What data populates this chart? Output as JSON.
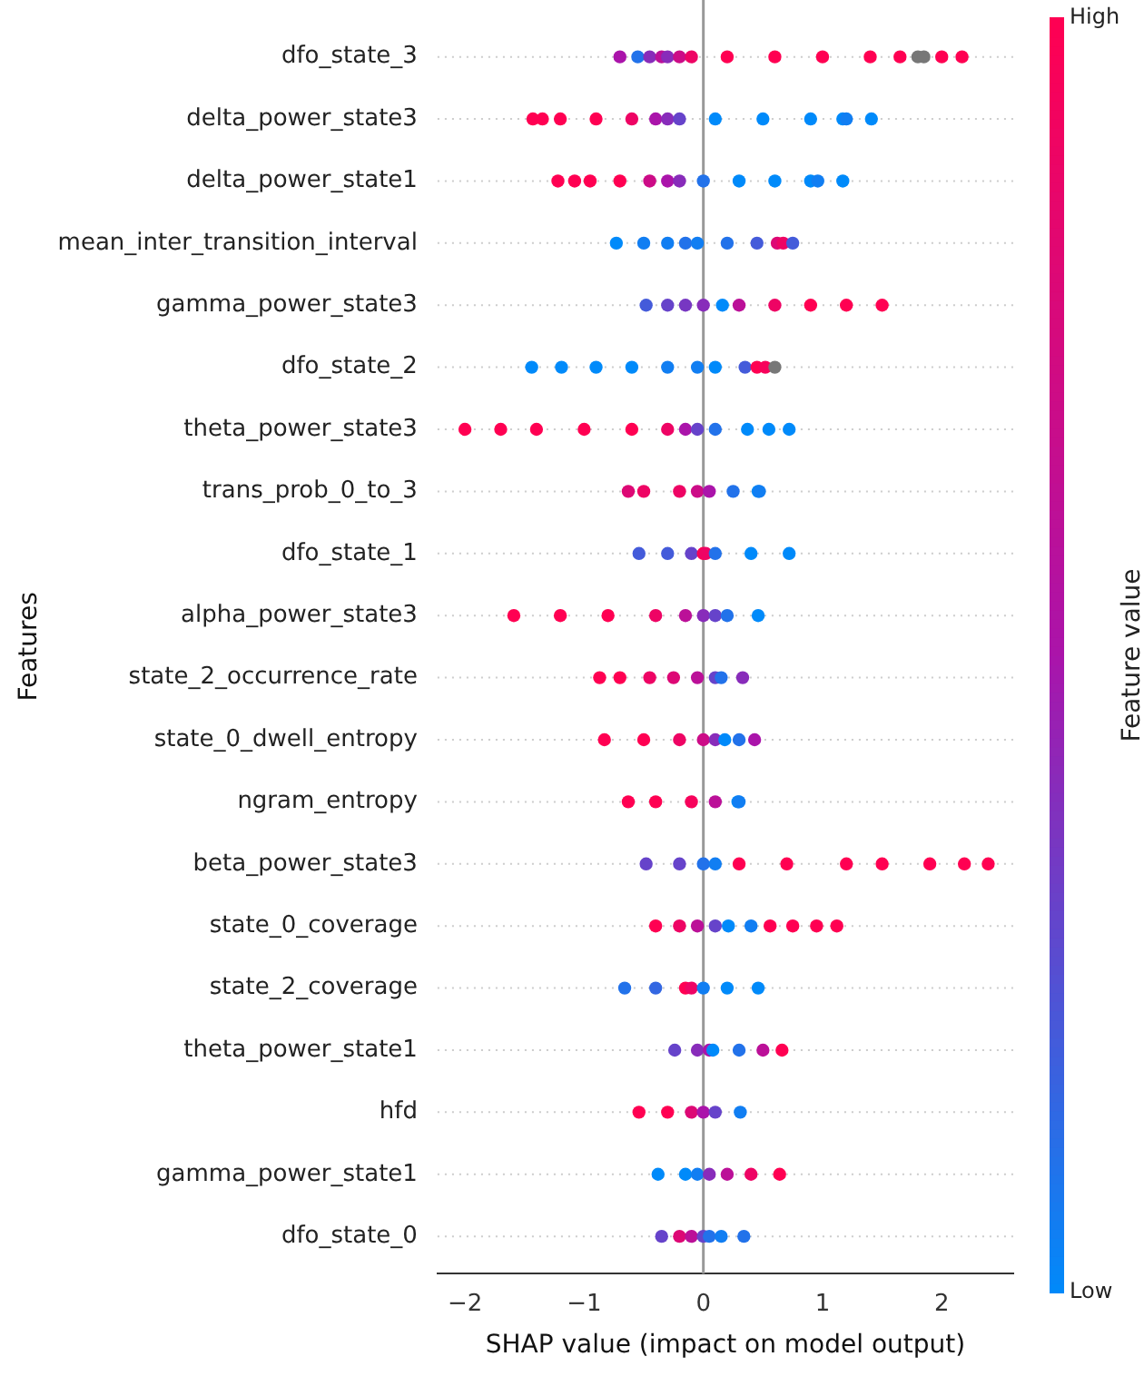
{
  "chart_data": {
    "type": "scatter",
    "orientation": "horizontal",
    "xlabel": "SHAP value (impact on model output)",
    "ylabel": "Features",
    "clabel": "Feature value",
    "categories": [
      "dfo_state_3",
      "delta_power_state3",
      "delta_power_state1",
      "mean_inter_transition_interval",
      "gamma_power_state3",
      "dfo_state_2",
      "theta_power_state3",
      "trans_prob_0_to_3",
      "dfo_state_1",
      "alpha_power_state3",
      "state_2_occurrence_rate",
      "state_0_dwell_entropy",
      "ngram_entropy",
      "beta_power_state3",
      "state_0_coverage",
      "state_2_coverage",
      "theta_power_state1",
      "hfd",
      "gamma_power_state1",
      "dfo_state_0"
    ],
    "series": [
      {
        "x": [
          "dfo_state_3",
          "dfo_state_3",
          "dfo_state_3",
          "dfo_state_3",
          "dfo_state_3",
          "dfo_state_3",
          "dfo_state_3",
          "dfo_state_3",
          "dfo_state_3",
          "dfo_state_3",
          "dfo_state_3",
          "dfo_state_3",
          "dfo_state_3",
          "dfo_state_3",
          "dfo_state_3",
          "dfo_state_3",
          "delta_power_state3",
          "delta_power_state3",
          "delta_power_state3",
          "delta_power_state3",
          "delta_power_state3",
          "delta_power_state3",
          "delta_power_state3",
          "delta_power_state3",
          "delta_power_state3",
          "delta_power_state3",
          "delta_power_state3",
          "delta_power_state3",
          "delta_power_state3",
          "delta_power_state3",
          "delta_power_state1",
          "delta_power_state1",
          "delta_power_state1",
          "delta_power_state1",
          "delta_power_state1",
          "delta_power_state1",
          "delta_power_state1",
          "delta_power_state1",
          "delta_power_state1",
          "delta_power_state1",
          "delta_power_state1",
          "delta_power_state1",
          "delta_power_state1",
          "mean_inter_transition_interval",
          "mean_inter_transition_interval",
          "mean_inter_transition_interval",
          "mean_inter_transition_interval",
          "mean_inter_transition_interval",
          "mean_inter_transition_interval",
          "mean_inter_transition_interval",
          "mean_inter_transition_interval",
          "mean_inter_transition_interval",
          "mean_inter_transition_interval",
          "gamma_power_state3",
          "gamma_power_state3",
          "gamma_power_state3",
          "gamma_power_state3",
          "gamma_power_state3",
          "gamma_power_state3",
          "gamma_power_state3",
          "gamma_power_state3",
          "gamma_power_state3",
          "gamma_power_state3",
          "dfo_state_2",
          "dfo_state_2",
          "dfo_state_2",
          "dfo_state_2",
          "dfo_state_2",
          "dfo_state_2",
          "dfo_state_2",
          "dfo_state_2",
          "dfo_state_2",
          "dfo_state_2",
          "dfo_state_2",
          "theta_power_state3",
          "theta_power_state3",
          "theta_power_state3",
          "theta_power_state3",
          "theta_power_state3",
          "theta_power_state3",
          "theta_power_state3",
          "theta_power_state3",
          "theta_power_state3",
          "theta_power_state3",
          "theta_power_state3",
          "theta_power_state3",
          "trans_prob_0_to_3",
          "trans_prob_0_to_3",
          "trans_prob_0_to_3",
          "trans_prob_0_to_3",
          "trans_prob_0_to_3",
          "trans_prob_0_to_3",
          "trans_prob_0_to_3",
          "trans_prob_0_to_3",
          "dfo_state_1",
          "dfo_state_1",
          "dfo_state_1",
          "dfo_state_1",
          "dfo_state_1",
          "dfo_state_1",
          "dfo_state_1",
          "dfo_state_1",
          "alpha_power_state3",
          "alpha_power_state3",
          "alpha_power_state3",
          "alpha_power_state3",
          "alpha_power_state3",
          "alpha_power_state3",
          "alpha_power_state3",
          "alpha_power_state3",
          "alpha_power_state3",
          "state_2_occurrence_rate",
          "state_2_occurrence_rate",
          "state_2_occurrence_rate",
          "state_2_occurrence_rate",
          "state_2_occurrence_rate",
          "state_2_occurrence_rate",
          "state_2_occurrence_rate",
          "state_2_occurrence_rate",
          "state_0_dwell_entropy",
          "state_0_dwell_entropy",
          "state_0_dwell_entropy",
          "state_0_dwell_entropy",
          "state_0_dwell_entropy",
          "state_0_dwell_entropy",
          "state_0_dwell_entropy",
          "state_0_dwell_entropy",
          "ngram_entropy",
          "ngram_entropy",
          "ngram_entropy",
          "ngram_entropy",
          "ngram_entropy",
          "ngram_entropy",
          "beta_power_state3",
          "beta_power_state3",
          "beta_power_state3",
          "beta_power_state3",
          "beta_power_state3",
          "beta_power_state3",
          "beta_power_state3",
          "beta_power_state3",
          "beta_power_state3",
          "beta_power_state3",
          "beta_power_state3",
          "state_0_coverage",
          "state_0_coverage",
          "state_0_coverage",
          "state_0_coverage",
          "state_0_coverage",
          "state_0_coverage",
          "state_0_coverage",
          "state_0_coverage",
          "state_0_coverage",
          "state_0_coverage",
          "state_2_coverage",
          "state_2_coverage",
          "state_2_coverage",
          "state_2_coverage",
          "state_2_coverage",
          "state_2_coverage",
          "state_2_coverage",
          "theta_power_state1",
          "theta_power_state1",
          "theta_power_state1",
          "theta_power_state1",
          "theta_power_state1",
          "theta_power_state1",
          "theta_power_state1",
          "hfd",
          "hfd",
          "hfd",
          "hfd",
          "hfd",
          "hfd",
          "gamma_power_state1",
          "gamma_power_state1",
          "gamma_power_state1",
          "gamma_power_state1",
          "gamma_power_state1",
          "gamma_power_state1",
          "gamma_power_state1",
          "dfo_state_0",
          "dfo_state_0",
          "dfo_state_0",
          "dfo_state_0",
          "dfo_state_0",
          "dfo_state_0",
          "dfo_state_0"
        ],
        "values": [
          -0.7,
          -0.55,
          -0.45,
          -0.35,
          -0.3,
          -0.2,
          -0.1,
          0.2,
          0.6,
          1.0,
          1.4,
          1.65,
          1.8,
          1.85,
          2.0,
          2.17,
          -1.43,
          -1.35,
          -1.2,
          -0.9,
          -0.6,
          -0.4,
          -0.3,
          -0.2,
          0.1,
          0.5,
          0.9,
          1.17,
          1.2,
          1.41,
          -1.22,
          -1.08,
          -0.95,
          -0.7,
          -0.45,
          -0.3,
          -0.2,
          0,
          0.3,
          0.6,
          0.9,
          0.96,
          1.17,
          -0.73,
          -0.5,
          -0.3,
          -0.15,
          -0.05,
          0.2,
          0.45,
          0.62,
          0.67,
          0.75,
          -0.48,
          -0.3,
          -0.15,
          0,
          0.16,
          0.3,
          0.6,
          0.9,
          1.2,
          1.5,
          -1.44,
          -1.19,
          -0.9,
          -0.6,
          -0.3,
          -0.05,
          0.1,
          0.35,
          0.45,
          0.52,
          0.6,
          -2.0,
          -1.7,
          -1.4,
          -1.0,
          -0.6,
          -0.3,
          -0.15,
          -0.05,
          0.1,
          0.37,
          0.55,
          0.72,
          -0.63,
          -0.5,
          -0.2,
          -0.05,
          0.05,
          0.25,
          0.46,
          0.47,
          -0.54,
          -0.3,
          -0.1,
          0,
          0.02,
          0.1,
          0.4,
          0.72,
          -1.59,
          -1.2,
          -0.8,
          -0.4,
          -0.15,
          0,
          0.1,
          0.2,
          0.46,
          -0.87,
          -0.7,
          -0.45,
          -0.25,
          -0.05,
          0.1,
          0.15,
          0.33,
          -0.83,
          -0.5,
          -0.2,
          0,
          0.1,
          0.18,
          0.3,
          0.43,
          -0.63,
          -0.4,
          -0.1,
          0.1,
          0.29,
          0.3,
          -0.48,
          -0.2,
          0,
          0.1,
          0.3,
          0.7,
          1.2,
          1.5,
          1.9,
          2.19,
          2.39,
          -0.4,
          -0.2,
          -0.05,
          0.1,
          0.21,
          0.4,
          0.56,
          0.75,
          0.95,
          1.12,
          -0.66,
          -0.4,
          -0.15,
          -0.1,
          0,
          0.2,
          0.46,
          -0.24,
          -0.05,
          0.05,
          0.08,
          0.3,
          0.5,
          0.66,
          -0.54,
          -0.3,
          -0.1,
          0,
          0.1,
          0.31,
          -0.38,
          -0.15,
          -0.05,
          0.05,
          0.2,
          0.4,
          0.64,
          -0.35,
          -0.2,
          -0.1,
          0,
          0.05,
          0.15,
          0.34
        ],
        "cvalues": [
          0.5,
          0.1,
          0.4,
          0.6,
          0.4,
          0.7,
          0.9,
          1,
          1,
          1,
          1,
          1,
          null,
          null,
          1,
          1,
          1,
          1,
          1,
          1,
          0.9,
          0.5,
          0.4,
          0.3,
          0,
          0,
          0,
          0,
          0.05,
          0,
          1,
          1,
          1,
          1,
          0.7,
          0.5,
          0.4,
          0.1,
          0,
          0,
          0,
          0.05,
          0,
          0,
          0.05,
          0.05,
          0.1,
          0.05,
          0.1,
          0.2,
          0.8,
          0.9,
          0.2,
          0.2,
          0.3,
          0.35,
          0.4,
          0,
          0.6,
          0.9,
          1,
          1,
          1,
          0,
          0,
          0,
          0,
          0.05,
          0.05,
          0,
          0.2,
          1,
          0.95,
          null,
          1,
          1,
          1,
          1,
          1,
          0.9,
          0.5,
          0.3,
          0.1,
          0,
          0,
          0,
          0.8,
          0.9,
          0.9,
          0.7,
          0.5,
          0.1,
          0,
          0.05,
          0.2,
          0.2,
          0.3,
          1,
          0.9,
          0.1,
          0,
          0,
          1,
          1,
          1,
          0.9,
          0.6,
          0.4,
          0.3,
          0.1,
          0,
          1,
          1,
          0.9,
          0.8,
          0.6,
          0.3,
          0.1,
          0.4,
          1,
          1,
          0.9,
          0.7,
          0.4,
          0,
          0.1,
          0.5,
          1,
          1,
          0.95,
          0.6,
          0,
          0.05,
          0.3,
          0.3,
          0.1,
          0.05,
          1,
          1,
          1,
          1,
          1,
          1,
          1,
          1,
          0.9,
          0.6,
          0.3,
          0,
          0.05,
          1,
          1,
          1,
          1,
          0.1,
          0.15,
          1,
          0.9,
          0.05,
          0,
          0,
          0.3,
          0.4,
          0.5,
          0,
          0.1,
          0.6,
          1,
          1,
          1,
          0.8,
          0.5,
          0.3,
          0.05,
          0,
          0,
          0.05,
          0.4,
          0.6,
          0.9,
          1,
          0.3,
          0.8,
          0.6,
          0.3,
          0.1,
          0.05,
          0.1
        ]
      }
    ],
    "xlim": [
      -2.23,
      2.6
    ],
    "xticks": [
      {
        "value": -2,
        "label": "−2"
      },
      {
        "value": -1,
        "label": "−1"
      },
      0,
      1,
      2
    ],
    "clim": [
      0,
      1
    ],
    "cticks": [
      {
        "value": 0,
        "label": "Low"
      },
      {
        "value": 1,
        "label": "High"
      }
    ],
    "ref_lines": [
      {
        "axis": "x",
        "value": 0,
        "color": "#999999"
      }
    ],
    "grid": "y",
    "marker": "circle",
    "legend": false
  }
}
